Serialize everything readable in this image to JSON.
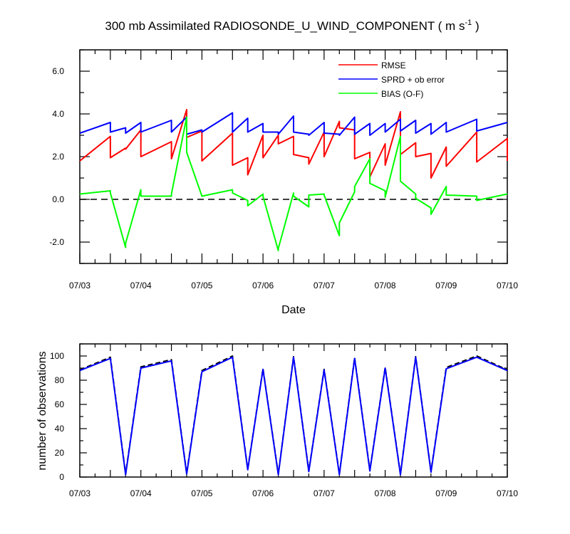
{
  "chart_data": [
    {
      "type": "line",
      "title": "300 mb Assimilated RADIOSONDE_U_WIND_COMPONENT ( m s⁻¹ )",
      "title_main": "300 mb Assimilated RADIOSONDE_U_WIND_COMPONENT ( m s",
      "title_sup": "-1",
      "title_end": " )",
      "xlabel": "Date",
      "ylabel": "",
      "x_tick_labels": [
        "07/03",
        "07/04",
        "07/05",
        "07/06",
        "07/07",
        "07/08",
        "07/09",
        "07/10"
      ],
      "y_tick_labels": [
        "6.0",
        "4.0",
        "2.0",
        "0.0",
        "-2.0"
      ],
      "y_ticks": [
        6,
        4,
        2,
        0,
        -2
      ],
      "xlim": [
        0,
        7
      ],
      "ylim": [
        -3,
        7
      ],
      "zero_line": 0,
      "legend_position": "top-right",
      "series": [
        {
          "name": "RMSE",
          "color": "#ff0000",
          "x": [
            0,
            0.5,
            0.5,
            0.75,
            0.75,
            1,
            1,
            1.5,
            1.5,
            1.75,
            1.75,
            2,
            2,
            2.5,
            2.5,
            2.75,
            2.75,
            3,
            3,
            3.25,
            3.25,
            3.5,
            3.5,
            3.75,
            3.75,
            4,
            4,
            4.25,
            4.25,
            4.5,
            4.5,
            4.75,
            4.75,
            5,
            5,
            5.25,
            5.25,
            5.5,
            5.5,
            5.75,
            5.75,
            6,
            6,
            6.5,
            6.5,
            7,
            7
          ],
          "y": [
            1.8,
            2.95,
            1.95,
            2.4,
            2.35,
            3.25,
            2.0,
            2.7,
            1.9,
            4.2,
            2.9,
            3.2,
            1.8,
            3.1,
            1.6,
            1.95,
            1.15,
            3.0,
            1.95,
            3.0,
            2.6,
            2.95,
            2.1,
            1.95,
            1.65,
            3.15,
            2.0,
            3.65,
            3.35,
            3.25,
            1.9,
            2.2,
            1.05,
            2.6,
            1.6,
            4.1,
            2.1,
            2.65,
            2.0,
            2.15,
            1.0,
            2.45,
            1.55,
            3.15,
            1.75,
            2.85,
            1.8
          ]
        },
        {
          "name": "SPRD + ob error",
          "color": "#0000ff",
          "x": [
            0,
            0.5,
            0.5,
            0.75,
            0.75,
            1,
            1,
            1.5,
            1.5,
            1.75,
            1.75,
            2,
            2,
            2.5,
            2.5,
            2.75,
            2.75,
            3,
            3,
            3.25,
            3.25,
            3.5,
            3.5,
            3.75,
            3.75,
            4,
            4,
            4.25,
            4.25,
            4.5,
            4.5,
            4.75,
            4.75,
            5,
            5,
            5.25,
            5.25,
            5.5,
            5.5,
            5.75,
            5.75,
            6,
            6,
            6.5,
            6.5,
            7
          ],
          "y": [
            3.1,
            3.6,
            3.15,
            3.35,
            3.1,
            3.6,
            3.15,
            3.7,
            3.15,
            3.85,
            3.05,
            3.25,
            3.15,
            4.05,
            3.15,
            3.8,
            3.15,
            3.55,
            3.15,
            3.15,
            3.05,
            3.9,
            3.15,
            3.05,
            3.0,
            3.6,
            3.1,
            3.05,
            3.0,
            3.85,
            3.05,
            3.55,
            3.0,
            3.55,
            3.15,
            3.75,
            3.2,
            3.7,
            3.1,
            3.55,
            3.05,
            3.6,
            3.15,
            3.75,
            3.2,
            3.6
          ]
        },
        {
          "name": "BIAS (O-F)",
          "color": "#00ff00",
          "x": [
            0,
            0.5,
            0.5,
            0.75,
            0.75,
            1,
            1,
            1.5,
            1.5,
            1.75,
            1.75,
            2,
            2,
            2.5,
            2.5,
            2.75,
            2.75,
            3,
            3,
            3.25,
            3.25,
            3.5,
            3.5,
            3.75,
            3.75,
            4,
            4,
            4.25,
            4.25,
            4.5,
            4.5,
            4.75,
            4.75,
            5,
            5,
            5.25,
            5.25,
            5.5,
            5.5,
            5.75,
            5.75,
            6,
            6,
            6.5,
            6.5,
            7
          ],
          "y": [
            0.25,
            0.4,
            0.3,
            -2.25,
            -2.05,
            0.45,
            0.15,
            0.15,
            0.25,
            3.85,
            2.2,
            0.15,
            0.15,
            0.45,
            0.3,
            -0.05,
            -0.3,
            0.25,
            0.15,
            -2.4,
            -2.3,
            0.3,
            0.15,
            -0.35,
            0.2,
            0.25,
            0.2,
            -1.7,
            -1.1,
            0.35,
            0.6,
            1.9,
            0.75,
            0.4,
            0.1,
            2.95,
            0.85,
            0.25,
            0.05,
            -0.4,
            -0.7,
            0.6,
            0.2,
            0.15,
            -0.05,
            0.25
          ]
        }
      ]
    },
    {
      "type": "line",
      "title": "",
      "xlabel": "",
      "ylabel": "number of observations",
      "x_tick_labels": [
        "07/03",
        "07/04",
        "07/05",
        "07/06",
        "07/07",
        "07/08",
        "07/09",
        "07/10"
      ],
      "y_tick_labels": [
        "100",
        "80",
        "60",
        "40",
        "20",
        "0"
      ],
      "y_ticks": [
        100,
        80,
        60,
        40,
        20,
        0
      ],
      "xlim": [
        0,
        7
      ],
      "ylim": [
        0,
        110
      ],
      "series": [
        {
          "name": "observations (black dashed)",
          "color": "#000000",
          "dashed": true,
          "x": [
            0,
            0.5,
            0.75,
            1,
            1.5,
            1.75,
            2,
            2.5,
            2.75,
            3,
            3.25,
            3.5,
            3.75,
            4,
            4.25,
            4.5,
            4.75,
            5,
            5.25,
            5.5,
            5.75,
            6,
            6.5,
            7
          ],
          "y": [
            88.5,
            99,
            2.5,
            91,
            97,
            3,
            88,
            100,
            6.5,
            89.5,
            2.5,
            99.5,
            5,
            89,
            2.5,
            98.5,
            5.5,
            90.5,
            2.5,
            99.5,
            4.5,
            90.5,
            100,
            88.5
          ]
        },
        {
          "name": "observations (blue)",
          "color": "#0000ff",
          "dashed": false,
          "x": [
            0,
            0.5,
            0.75,
            1,
            1.5,
            1.75,
            2,
            2.5,
            2.75,
            3,
            3.25,
            3.5,
            3.75,
            4,
            4.25,
            4.5,
            4.75,
            5,
            5.25,
            5.5,
            5.75,
            6,
            6.5,
            7
          ],
          "y": [
            88,
            98,
            2,
            90,
            96,
            2.5,
            87,
            99,
            6,
            89,
            2,
            99,
            4.5,
            88.5,
            2,
            98,
            5,
            90,
            2,
            99,
            4,
            89.5,
            99,
            88
          ]
        }
      ]
    }
  ]
}
